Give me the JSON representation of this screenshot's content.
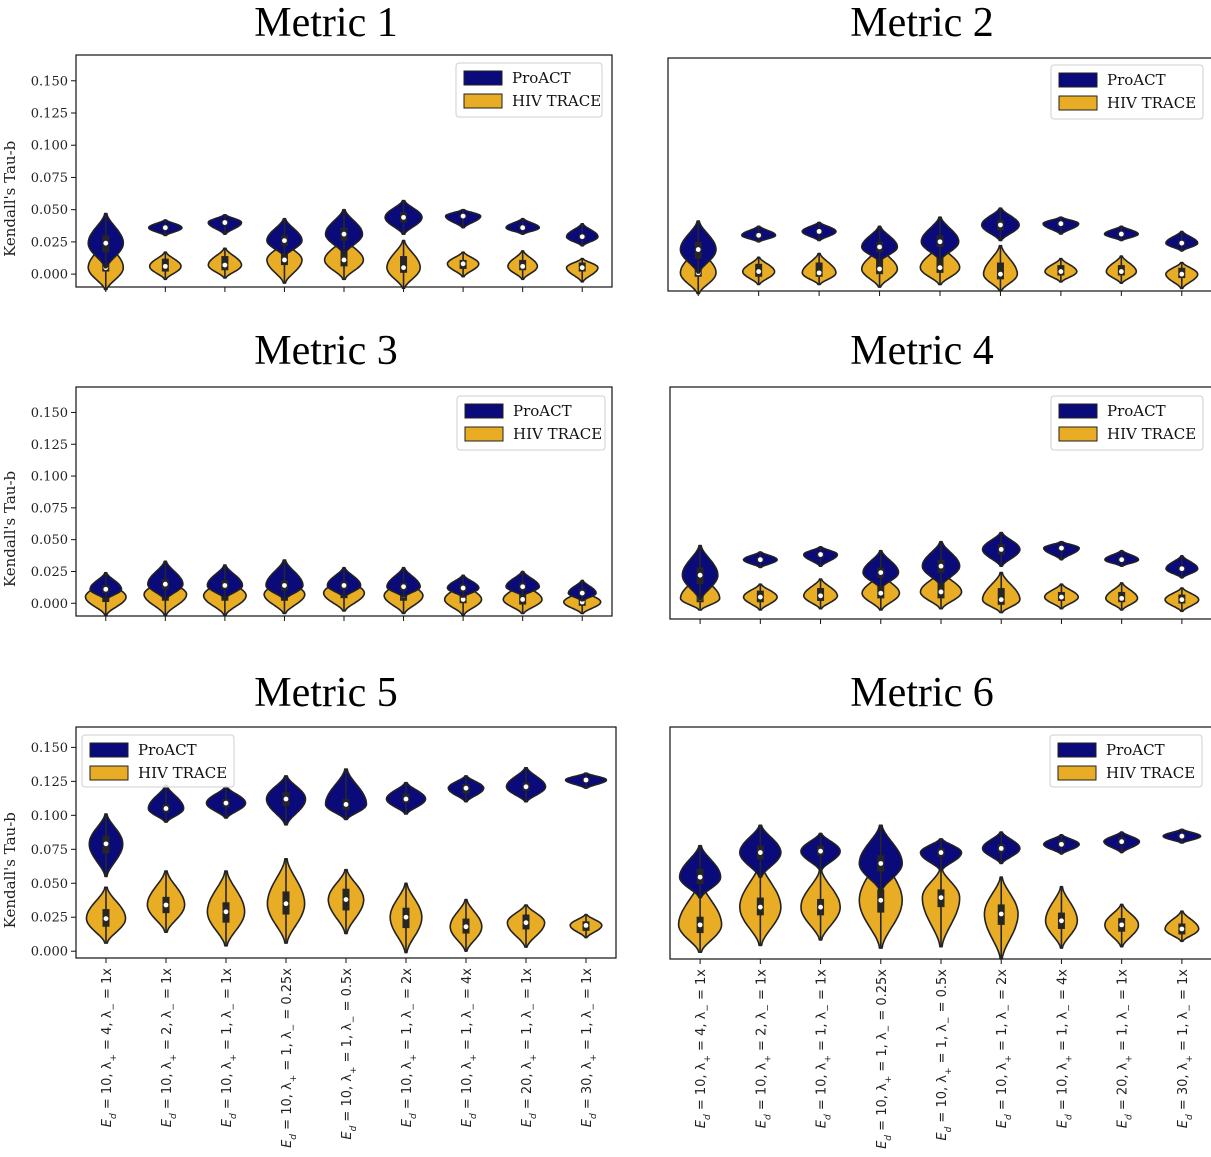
{
  "colors": {
    "proact": "#0a0a7a",
    "hiv": "#e8ac25",
    "edge": "#222222",
    "box": "#262626",
    "median": "#ffffff"
  },
  "legend_labels": [
    "ProACT",
    "HIV TRACE"
  ],
  "ylabel": "Kendall's Tau-b",
  "y_ticks": [
    "0.000",
    "0.025",
    "0.050",
    "0.075",
    "0.100",
    "0.125",
    "0.150"
  ],
  "x_categories": [
    "E_d = 10, λ+ = 4, λ− = 1x",
    "E_d = 10, λ+ = 2, λ− = 1x",
    "E_d = 10, λ+ = 1, λ− = 1x",
    "E_d = 10, λ+ = 1, λ− = 0.25x",
    "E_d = 10, λ+ = 1, λ− = 0.5x",
    "E_d = 10, λ+ = 1, λ− = 2x",
    "E_d = 10, λ+ = 1, λ− = 4x",
    "E_d = 20, λ+ = 1, λ− = 1x",
    "E_d = 30, λ+ = 1, λ− = 1x"
  ],
  "x_categories_display": [
    {
      "pre": "10, ",
      "lp": "4",
      "mid": ", ",
      "lm": "= 1x"
    },
    {
      "pre": "10, ",
      "lp": "2",
      "mid": ", ",
      "lm": "= 1x"
    },
    {
      "pre": "10, ",
      "lp": "1",
      "mid": ", ",
      "lm": "= 1x"
    },
    {
      "pre": "10, ",
      "lp": "1",
      "mid": ", ",
      "lm": "= 0.25x"
    },
    {
      "pre": "10, ",
      "lp": "1",
      "mid": ", ",
      "lm": "= 0.5x"
    },
    {
      "pre": "10, ",
      "lp": "1",
      "mid": ", ",
      "lm": "= 2x"
    },
    {
      "pre": "10, ",
      "lp": "1",
      "mid": ", ",
      "lm": "= 4x"
    },
    {
      "pre": "20, ",
      "lp": "1",
      "mid": ", ",
      "lm": "= 1x"
    },
    {
      "pre": "30, ",
      "lp": "1",
      "mid": ", ",
      "lm": "= 1x"
    }
  ],
  "chart_data": [
    {
      "type": "violin",
      "title": "Metric 1",
      "ylabel": "Kendall's Tau-b",
      "show_yticks": true,
      "ylim": [
        -0.01,
        0.17
      ],
      "legend_position": "top-right",
      "series": [
        {
          "name": "ProACT",
          "median": [
            0.024,
            0.036,
            0.04,
            0.026,
            0.031,
            0.044,
            0.045,
            0.036,
            0.029
          ],
          "min": [
            0.005,
            0.03,
            0.031,
            0.014,
            0.016,
            0.031,
            0.036,
            0.031,
            0.022
          ],
          "max": [
            0.047,
            0.042,
            0.046,
            0.043,
            0.05,
            0.057,
            0.05,
            0.043,
            0.039
          ],
          "q1": [
            0.017,
            0.034,
            0.038,
            0.022,
            0.026,
            0.04,
            0.043,
            0.034,
            0.027
          ],
          "q3": [
            0.03,
            0.038,
            0.042,
            0.03,
            0.036,
            0.048,
            0.047,
            0.038,
            0.031
          ],
          "width": [
            0.38,
            0.36,
            0.36,
            0.38,
            0.4,
            0.4,
            0.38,
            0.36,
            0.34
          ]
        },
        {
          "name": "HIV TRACE",
          "median": [
            0.005,
            0.006,
            0.007,
            0.011,
            0.011,
            0.005,
            0.008,
            0.006,
            0.005
          ],
          "min": [
            -0.012,
            -0.004,
            -0.003,
            -0.007,
            -0.004,
            -0.011,
            -0.002,
            -0.004,
            -0.006
          ],
          "max": [
            0.027,
            0.017,
            0.02,
            0.025,
            0.028,
            0.026,
            0.017,
            0.018,
            0.012
          ],
          "q1": [
            0.002,
            0.002,
            0.003,
            0.007,
            0.006,
            0.001,
            0.004,
            0.003,
            0.002
          ],
          "q3": [
            0.018,
            0.012,
            0.014,
            0.017,
            0.019,
            0.014,
            0.011,
            0.011,
            0.009
          ],
          "width": [
            0.38,
            0.34,
            0.36,
            0.38,
            0.42,
            0.36,
            0.34,
            0.32,
            0.34
          ]
        }
      ]
    },
    {
      "type": "violin",
      "title": "Metric 2",
      "ylabel": "",
      "show_yticks": false,
      "ylim": [
        -0.01,
        0.17
      ],
      "legend_position": "top-right",
      "series": [
        {
          "name": "ProACT",
          "median": [
            0.022,
            0.033,
            0.036,
            0.024,
            0.028,
            0.041,
            0.042,
            0.034,
            0.027
          ],
          "min": [
            0.004,
            0.028,
            0.029,
            0.013,
            0.014,
            0.029,
            0.034,
            0.029,
            0.021
          ],
          "max": [
            0.044,
            0.04,
            0.043,
            0.04,
            0.047,
            0.054,
            0.047,
            0.04,
            0.036
          ],
          "q1": [
            0.015,
            0.031,
            0.034,
            0.02,
            0.024,
            0.037,
            0.04,
            0.032,
            0.025
          ],
          "q3": [
            0.028,
            0.035,
            0.038,
            0.028,
            0.033,
            0.045,
            0.044,
            0.036,
            0.029
          ],
          "width": [
            0.38,
            0.36,
            0.36,
            0.38,
            0.4,
            0.4,
            0.38,
            0.36,
            0.34
          ]
        },
        {
          "name": "HIV TRACE",
          "median": [
            0.004,
            0.005,
            0.004,
            0.007,
            0.008,
            0.003,
            0.005,
            0.005,
            0.003
          ],
          "min": [
            -0.012,
            -0.005,
            -0.005,
            -0.007,
            -0.005,
            -0.01,
            -0.003,
            -0.004,
            -0.008
          ],
          "max": [
            0.025,
            0.016,
            0.019,
            0.024,
            0.026,
            0.025,
            0.015,
            0.017,
            0.012
          ],
          "q1": [
            0.001,
            0.001,
            0.001,
            0.003,
            0.004,
            -0.001,
            0.002,
            0.002,
            0.0
          ],
          "q3": [
            0.016,
            0.011,
            0.012,
            0.015,
            0.017,
            0.012,
            0.01,
            0.01,
            0.008
          ],
          "width": [
            0.38,
            0.34,
            0.36,
            0.38,
            0.42,
            0.36,
            0.34,
            0.32,
            0.34
          ]
        }
      ]
    },
    {
      "type": "violin",
      "title": "Metric 3",
      "ylabel": "Kendall's Tau-b",
      "show_yticks": true,
      "ylim": [
        -0.01,
        0.17
      ],
      "legend_position": "top-right",
      "series": [
        {
          "name": "ProACT",
          "median": [
            0.011,
            0.015,
            0.014,
            0.014,
            0.014,
            0.013,
            0.012,
            0.013,
            0.008
          ],
          "min": [
            0.003,
            0.003,
            0.004,
            0.003,
            0.005,
            0.005,
            0.005,
            0.006,
            0.002
          ],
          "max": [
            0.024,
            0.033,
            0.03,
            0.034,
            0.028,
            0.028,
            0.022,
            0.025,
            0.018
          ],
          "q1": [
            0.008,
            0.011,
            0.011,
            0.01,
            0.011,
            0.01,
            0.009,
            0.01,
            0.006
          ],
          "q3": [
            0.014,
            0.019,
            0.018,
            0.018,
            0.017,
            0.016,
            0.015,
            0.016,
            0.011
          ],
          "width": [
            0.34,
            0.38,
            0.38,
            0.4,
            0.36,
            0.36,
            0.34,
            0.36,
            0.3
          ]
        },
        {
          "name": "HIV TRACE",
          "median": [
            0.005,
            0.007,
            0.006,
            0.007,
            0.008,
            0.006,
            0.003,
            0.003,
            0.001
          ],
          "min": [
            -0.009,
            -0.009,
            -0.009,
            -0.008,
            -0.006,
            -0.008,
            -0.009,
            -0.008,
            -0.008
          ],
          "max": [
            0.018,
            0.02,
            0.02,
            0.02,
            0.021,
            0.019,
            0.016,
            0.016,
            0.01
          ],
          "q1": [
            0.001,
            0.002,
            0.002,
            0.002,
            0.004,
            0.002,
            0.0,
            -0.001,
            -0.002
          ],
          "q3": [
            0.01,
            0.013,
            0.012,
            0.013,
            0.013,
            0.011,
            0.008,
            0.008,
            0.005
          ],
          "width": [
            0.44,
            0.46,
            0.46,
            0.44,
            0.44,
            0.42,
            0.4,
            0.42,
            0.4
          ]
        }
      ]
    },
    {
      "type": "violin",
      "title": "Metric 4",
      "ylabel": "",
      "show_yticks": false,
      "ylim": [
        -0.01,
        0.17
      ],
      "legend_position": "top-right",
      "series": [
        {
          "name": "ProACT",
          "median": [
            0.024,
            0.036,
            0.04,
            0.026,
            0.031,
            0.044,
            0.045,
            0.036,
            0.029
          ],
          "min": [
            0.005,
            0.03,
            0.031,
            0.014,
            0.016,
            0.031,
            0.036,
            0.031,
            0.022
          ],
          "max": [
            0.047,
            0.042,
            0.046,
            0.043,
            0.05,
            0.057,
            0.05,
            0.043,
            0.039
          ],
          "q1": [
            0.017,
            0.034,
            0.038,
            0.022,
            0.026,
            0.04,
            0.043,
            0.034,
            0.027
          ],
          "q3": [
            0.03,
            0.038,
            0.042,
            0.03,
            0.036,
            0.048,
            0.047,
            0.038,
            0.031
          ],
          "width": [
            0.38,
            0.36,
            0.36,
            0.38,
            0.4,
            0.4,
            0.38,
            0.36,
            0.34
          ]
        },
        {
          "name": "HIV TRACE",
          "median": [
            0.006,
            0.007,
            0.008,
            0.01,
            0.011,
            0.005,
            0.007,
            0.006,
            0.005
          ],
          "min": [
            -0.003,
            -0.003,
            -0.002,
            -0.003,
            -0.002,
            -0.005,
            -0.002,
            -0.003,
            -0.004
          ],
          "max": [
            0.026,
            0.017,
            0.021,
            0.025,
            0.027,
            0.026,
            0.017,
            0.018,
            0.014
          ],
          "q1": [
            0.003,
            0.003,
            0.004,
            0.006,
            0.006,
            0.001,
            0.004,
            0.003,
            0.002
          ],
          "q3": [
            0.017,
            0.012,
            0.014,
            0.017,
            0.019,
            0.014,
            0.011,
            0.011,
            0.009
          ],
          "width": [
            0.42,
            0.36,
            0.36,
            0.4,
            0.44,
            0.4,
            0.36,
            0.34,
            0.36
          ]
        }
      ]
    },
    {
      "type": "violin",
      "title": "Metric 5",
      "ylabel": "Kendall's Tau-b",
      "show_yticks": true,
      "ylim": [
        -0.005,
        0.165
      ],
      "legend_position": "top-left",
      "series": [
        {
          "name": "ProACT",
          "median": [
            0.079,
            0.105,
            0.109,
            0.112,
            0.108,
            0.112,
            0.12,
            0.121,
            0.126
          ],
          "min": [
            0.055,
            0.095,
            0.098,
            0.093,
            0.097,
            0.101,
            0.11,
            0.11,
            0.12
          ],
          "max": [
            0.101,
            0.122,
            0.121,
            0.129,
            0.134,
            0.124,
            0.129,
            0.135,
            0.131
          ],
          "q1": [
            0.072,
            0.102,
            0.106,
            0.107,
            0.104,
            0.109,
            0.116,
            0.118,
            0.124
          ],
          "q3": [
            0.085,
            0.108,
            0.112,
            0.117,
            0.112,
            0.116,
            0.123,
            0.124,
            0.128
          ],
          "width": [
            0.36,
            0.38,
            0.42,
            0.42,
            0.44,
            0.42,
            0.38,
            0.42,
            0.44
          ]
        },
        {
          "name": "HIV TRACE",
          "median": [
            0.024,
            0.034,
            0.029,
            0.035,
            0.038,
            0.025,
            0.018,
            0.021,
            0.019
          ],
          "min": [
            0.006,
            0.014,
            0.004,
            0.006,
            0.013,
            -0.001,
            0.0,
            0.003,
            0.01
          ],
          "max": [
            0.047,
            0.059,
            0.059,
            0.068,
            0.06,
            0.05,
            0.038,
            0.034,
            0.027
          ],
          "q1": [
            0.018,
            0.028,
            0.021,
            0.027,
            0.03,
            0.017,
            0.013,
            0.016,
            0.015
          ],
          "q3": [
            0.031,
            0.04,
            0.036,
            0.044,
            0.046,
            0.032,
            0.024,
            0.027,
            0.022
          ],
          "width": [
            0.42,
            0.4,
            0.4,
            0.4,
            0.38,
            0.34,
            0.34,
            0.4,
            0.34
          ]
        }
      ]
    },
    {
      "type": "violin",
      "title": "Metric 6",
      "ylabel": "",
      "show_yticks": false,
      "ylim": [
        -0.005,
        0.165
      ],
      "legend_position": "top-right",
      "series": [
        {
          "name": "ProACT",
          "median": [
            0.055,
            0.073,
            0.074,
            0.065,
            0.073,
            0.076,
            0.079,
            0.081,
            0.085
          ],
          "min": [
            0.04,
            0.055,
            0.06,
            0.045,
            0.06,
            0.065,
            0.072,
            0.073,
            0.08
          ],
          "max": [
            0.078,
            0.093,
            0.087,
            0.093,
            0.083,
            0.088,
            0.086,
            0.088,
            0.09
          ],
          "q1": [
            0.05,
            0.068,
            0.071,
            0.059,
            0.07,
            0.073,
            0.077,
            0.079,
            0.083
          ],
          "q3": [
            0.061,
            0.078,
            0.078,
            0.071,
            0.076,
            0.079,
            0.082,
            0.084,
            0.087
          ],
          "width": [
            0.44,
            0.44,
            0.42,
            0.46,
            0.44,
            0.4,
            0.38,
            0.38,
            0.4
          ]
        },
        {
          "name": "HIV TRACE",
          "median": [
            0.02,
            0.033,
            0.033,
            0.038,
            0.04,
            0.028,
            0.023,
            0.02,
            0.017
          ],
          "min": [
            0.0,
            0.005,
            0.009,
            0.003,
            0.004,
            -0.005,
            0.003,
            0.004,
            0.008
          ],
          "max": [
            0.052,
            0.065,
            0.06,
            0.073,
            0.061,
            0.055,
            0.048,
            0.035,
            0.03
          ],
          "q1": [
            0.014,
            0.027,
            0.027,
            0.029,
            0.033,
            0.02,
            0.017,
            0.015,
            0.013
          ],
          "q3": [
            0.026,
            0.04,
            0.039,
            0.046,
            0.046,
            0.035,
            0.029,
            0.025,
            0.021
          ],
          "width": [
            0.46,
            0.44,
            0.42,
            0.46,
            0.4,
            0.36,
            0.34,
            0.36,
            0.36
          ]
        }
      ]
    }
  ]
}
